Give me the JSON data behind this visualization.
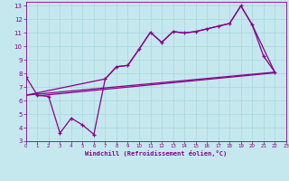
{
  "xlabel": "Windchill (Refroidissement éolien,°C)",
  "bg_color": "#c5e8ee",
  "grid_color": "#a8d5dd",
  "line_color": "#880088",
  "xlim": [
    0,
    23
  ],
  "ylim": [
    3,
    13.3
  ],
  "xticks": [
    0,
    1,
    2,
    3,
    4,
    5,
    6,
    7,
    8,
    9,
    10,
    11,
    12,
    13,
    14,
    15,
    16,
    17,
    18,
    19,
    20,
    21,
    22,
    23
  ],
  "yticks": [
    3,
    4,
    5,
    6,
    7,
    8,
    9,
    10,
    11,
    12,
    13
  ],
  "line_zigzag": {
    "x": [
      0,
      1,
      2,
      3,
      4,
      5,
      6,
      7,
      8,
      9,
      10,
      11,
      12,
      13,
      14,
      15,
      16,
      17,
      18,
      19,
      20,
      21,
      22
    ],
    "y": [
      7.75,
      6.4,
      6.3,
      3.6,
      4.7,
      4.2,
      3.5,
      7.6,
      8.5,
      8.6,
      9.8,
      11.05,
      10.3,
      11.1,
      11.0,
      11.1,
      11.3,
      11.5,
      11.7,
      13.0,
      11.6,
      9.3,
      8.1
    ]
  },
  "line_straight_bottom": {
    "x": [
      0,
      22
    ],
    "y": [
      6.4,
      8.1
    ]
  },
  "line_upper_envelope": {
    "x": [
      0,
      7,
      8,
      9,
      10,
      11,
      12,
      13,
      14,
      15,
      16,
      17,
      18,
      19,
      20,
      22
    ],
    "y": [
      6.4,
      7.6,
      8.5,
      8.6,
      9.8,
      11.05,
      10.3,
      11.1,
      11.0,
      11.1,
      11.3,
      11.5,
      11.7,
      13.0,
      11.6,
      8.1
    ]
  },
  "line_extra_diagonal": {
    "x": [
      1,
      22
    ],
    "y": [
      6.35,
      8.05
    ]
  }
}
